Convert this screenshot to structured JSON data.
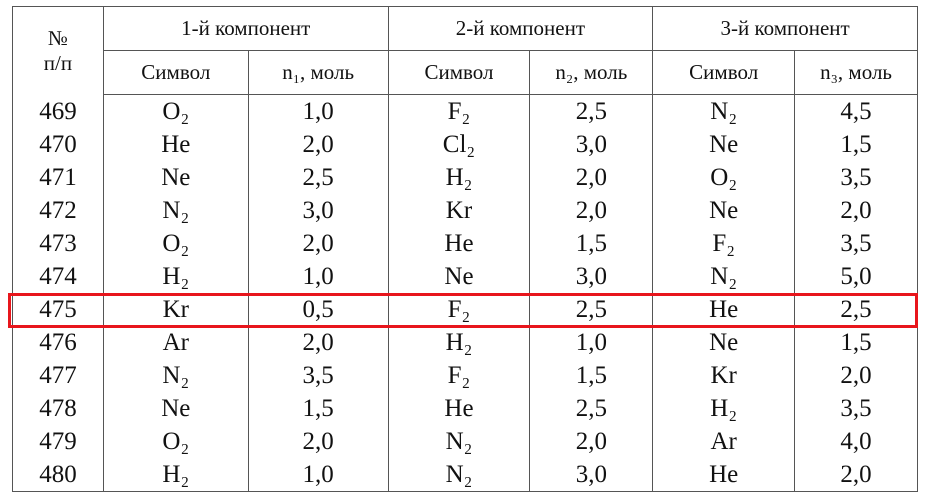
{
  "header": {
    "number": [
      "№",
      "п/п"
    ],
    "groups": [
      "1-й компонент",
      "2-й компонент",
      "3-й компонент"
    ],
    "columns": [
      "Символ",
      "n₁, моль",
      "Символ",
      "n₂, моль",
      "Символ",
      "n₃, моль"
    ]
  },
  "table": {
    "rows": [
      [
        "469",
        "O₂",
        "1,0",
        "F₂",
        "2,5",
        "N₂",
        "4,5"
      ],
      [
        "470",
        "He",
        "2,0",
        "Cl₂",
        "3,0",
        "Ne",
        "1,5"
      ],
      [
        "471",
        "Ne",
        "2,5",
        "H₂",
        "2,0",
        "O₂",
        "3,5"
      ],
      [
        "472",
        "N₂",
        "3,0",
        "Kr",
        "2,0",
        "Ne",
        "2,0"
      ],
      [
        "473",
        "O₂",
        "2,0",
        "He",
        "1,5",
        "F₂",
        "3,5"
      ],
      [
        "474",
        "H₂",
        "1,0",
        "Ne",
        "3,0",
        "N₂",
        "5,0"
      ],
      [
        "475",
        "Kr",
        "0,5",
        "F₂",
        "2,5",
        "He",
        "2,5"
      ],
      [
        "476",
        "Ar",
        "2,0",
        "H₂",
        "1,0",
        "Ne",
        "1,5"
      ],
      [
        "477",
        "N₂",
        "3,5",
        "F₂",
        "1,5",
        "Kr",
        "2,0"
      ],
      [
        "478",
        "Ne",
        "1,5",
        "He",
        "2,5",
        "H₂",
        "3,5"
      ],
      [
        "479",
        "O₂",
        "2,0",
        "N₂",
        "2,0",
        "Ar",
        "4,0"
      ],
      [
        "480",
        "H₂",
        "1,0",
        "N₂",
        "3,0",
        "He",
        "2,0"
      ]
    ]
  }
}
